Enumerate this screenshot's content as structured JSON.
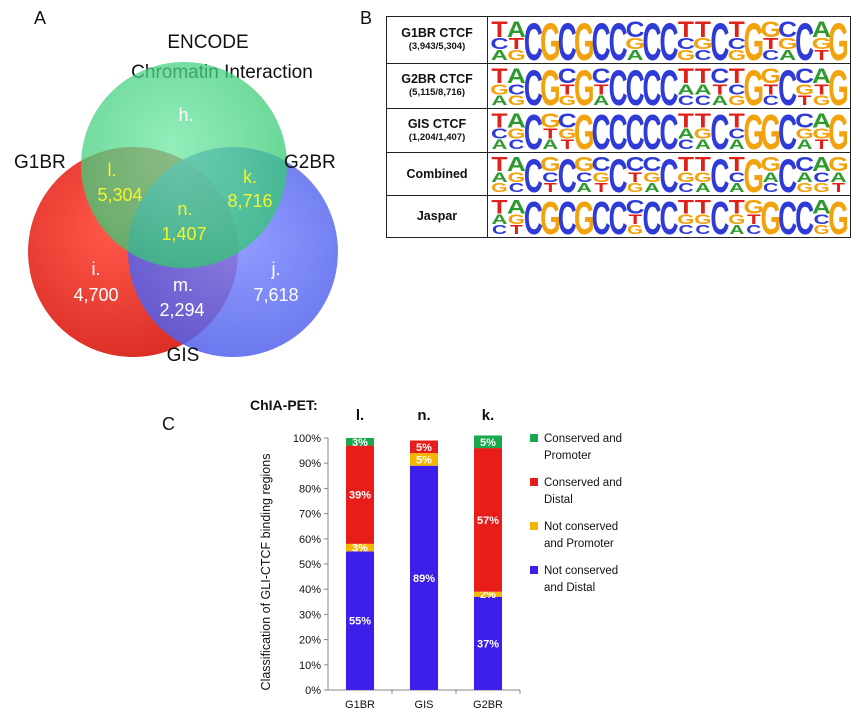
{
  "panels": {
    "a": "A",
    "b": "B",
    "c": "C"
  },
  "venn": {
    "title_line1": "ENCODE",
    "title_line2": "Chromatin Interaction",
    "set_left": "G1BR",
    "set_right": "G2BR",
    "set_bottom": "GIS",
    "regions": {
      "h": {
        "label": "h.",
        "value": ""
      },
      "i": {
        "label": "i.",
        "value": "4,700"
      },
      "j": {
        "label": "j.",
        "value": "7,618"
      },
      "k": {
        "label": "k.",
        "value": "8,716"
      },
      "l": {
        "label": "l.",
        "value": "5,304"
      },
      "m": {
        "label": "m.",
        "value": "2,294"
      },
      "n": {
        "label": "n.",
        "value": "1,407"
      }
    },
    "colors": {
      "green": "#3ed27a",
      "red": "#e8241c",
      "blue": "#5b6cf2",
      "highlight": "#f2f52a"
    }
  },
  "motifs": {
    "rows": [
      {
        "name": "G1BR CTCF",
        "sub": "(3,943/5,304)"
      },
      {
        "name": "G2BR CTCF",
        "sub": "(5,115/8,716)"
      },
      {
        "name": "GIS CTCF",
        "sub": "(1,204/1,407)"
      },
      {
        "name": "Combined",
        "sub": ""
      },
      {
        "name": "Jaspar",
        "sub": ""
      }
    ],
    "colors": {
      "A": "#2e9a2e",
      "C": "#2f3bd6",
      "G": "#f2a20c",
      "T": "#e0201a"
    },
    "top_sequence": "TACGCGCCCCCTTCTGGCCAG"
  },
  "chart_data": {
    "type": "bar",
    "stacked": true,
    "title": "ChIA-PET:",
    "categories": [
      "G1BR",
      "GIS",
      "G2BR"
    ],
    "category_top_labels": [
      "l.",
      "n.",
      "k."
    ],
    "ylabel": "Classification of GLI-CTCF binding regions",
    "ylim": [
      0,
      100
    ],
    "yticks": [
      "0%",
      "10%",
      "20%",
      "30%",
      "40%",
      "50%",
      "60%",
      "70%",
      "80%",
      "90%",
      "100%"
    ],
    "series": [
      {
        "name": "Not conserved and Distal",
        "color": "#3c1fe8",
        "values": [
          55,
          89,
          37
        ],
        "labels": [
          "55%",
          "89%",
          "37%"
        ]
      },
      {
        "name": "Not conserved and Promoter",
        "color": "#f4b400",
        "values": [
          3,
          5,
          2
        ],
        "labels": [
          "3%",
          "5%",
          "2%"
        ]
      },
      {
        "name": "Conserved and Distal",
        "color": "#e81c18",
        "values": [
          39,
          5,
          57
        ],
        "labels": [
          "39%",
          "5%",
          "57%"
        ]
      },
      {
        "name": "Conserved and Promoter",
        "color": "#19a84c",
        "values": [
          3,
          0,
          5
        ],
        "labels": [
          "3%",
          "",
          "5%"
        ]
      }
    ],
    "legend": [
      {
        "line1": "Conserved and",
        "line2": "Promoter",
        "color": "#19a84c"
      },
      {
        "line1": "Conserved and",
        "line2": "Distal",
        "color": "#e81c18"
      },
      {
        "line1": "Not conserved",
        "line2": "and Promoter",
        "color": "#f4b400"
      },
      {
        "line1": "Not conserved",
        "line2": "and Distal",
        "color": "#3c1fe8"
      }
    ]
  }
}
